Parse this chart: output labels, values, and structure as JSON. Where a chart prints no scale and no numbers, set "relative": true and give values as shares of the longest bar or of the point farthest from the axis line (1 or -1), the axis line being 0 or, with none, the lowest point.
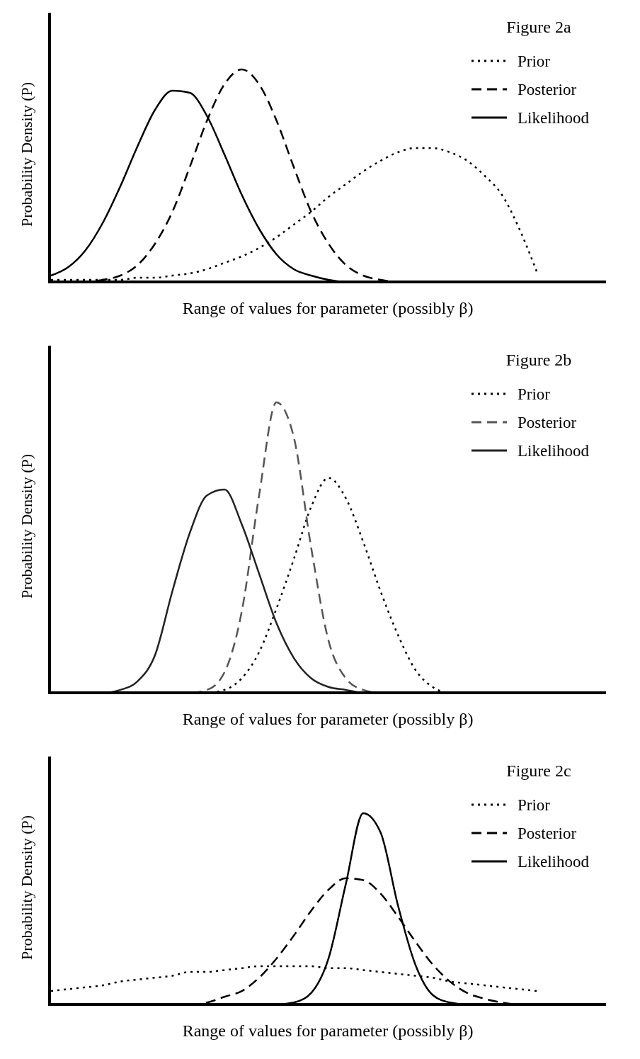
{
  "chart_data": [
    {
      "type": "line",
      "title": "Figure 2a",
      "xlabel": "Range of values for parameter (possibly β)",
      "ylabel": "Probability Density (P)",
      "relative": true,
      "legend": "top right",
      "categories": [
        null,
        null,
        null,
        null,
        null,
        null,
        null,
        null,
        null,
        null,
        null,
        null,
        null,
        null,
        null,
        null,
        null,
        null,
        null,
        null,
        null,
        null,
        null,
        null,
        null,
        null,
        null,
        null,
        null,
        null,
        null,
        null,
        null
      ],
      "series": [
        {
          "name": "Prior",
          "color": "#000000",
          "line_style": "dotted",
          "values": [
            0.01,
            0.01,
            0.01,
            0.01,
            0.01,
            0.02,
            0.02,
            0.03,
            0.04,
            0.06,
            0.09,
            0.12,
            0.16,
            0.21,
            0.27,
            0.33,
            0.4,
            0.46,
            0.52,
            0.57,
            0.61,
            0.63,
            0.63,
            0.61,
            0.57,
            0.5,
            0.41,
            0.25,
            0.05,
            null,
            null,
            null,
            null
          ]
        },
        {
          "name": "Posterior",
          "color": "#000000",
          "line_style": "dashed",
          "values": [
            0,
            0,
            0,
            0.01,
            0.03,
            0.08,
            0.18,
            0.33,
            0.54,
            0.76,
            0.93,
            1,
            0.93,
            0.76,
            0.54,
            0.33,
            0.18,
            0.08,
            0.03,
            0.01,
            0,
            0,
            0,
            0,
            0,
            0,
            0,
            0,
            0,
            0,
            0,
            0,
            0
          ]
        },
        {
          "name": "Likelihood",
          "color": "#000000",
          "line_style": "solid",
          "values": [
            0.03,
            0.07,
            0.15,
            0.28,
            0.45,
            0.64,
            0.81,
            0.9,
            0.89,
            0.78,
            0.6,
            0.41,
            0.25,
            0.13,
            0.06,
            0.03,
            0.01,
            0,
            0,
            0,
            0,
            0,
            0,
            0,
            0,
            0,
            0,
            0,
            0,
            0,
            0,
            0,
            0
          ]
        }
      ]
    },
    {
      "type": "line",
      "title": "Figure 2b",
      "xlabel": "Range of values for parameter (possibly β)",
      "ylabel": "Probability Density (P)",
      "relative": true,
      "legend": "top right",
      "categories": [
        null,
        null,
        null,
        null,
        null,
        null,
        null,
        null,
        null,
        null,
        null,
        null,
        null,
        null,
        null,
        null,
        null,
        null,
        null,
        null,
        null,
        null,
        null,
        null,
        null,
        null,
        null,
        null,
        null,
        null,
        null,
        null,
        null
      ],
      "series": [
        {
          "name": "Prior",
          "color": "#000000",
          "line_style": "dotted",
          "values": [
            0,
            0,
            0,
            0,
            0,
            0,
            0,
            0,
            0,
            0,
            0.01,
            0.05,
            0.14,
            0.29,
            0.46,
            0.64,
            0.74,
            0.67,
            0.52,
            0.35,
            0.2,
            0.08,
            0.02,
            0,
            0,
            0,
            0,
            0,
            0,
            0,
            0,
            0,
            0
          ]
        },
        {
          "name": "Posterior",
          "color": "#555555",
          "line_style": "dashed",
          "values": [
            0,
            0,
            0,
            0,
            0,
            0,
            0,
            0,
            0,
            0.01,
            0.07,
            0.28,
            0.68,
            1,
            0.88,
            0.5,
            0.18,
            0.05,
            0.01,
            0,
            0,
            0,
            0,
            0,
            0,
            0,
            0,
            0,
            0,
            0,
            0,
            0,
            0
          ]
        },
        {
          "name": "Likelihood",
          "color": "#222222",
          "line_style": "solid",
          "values": [
            0,
            0,
            0,
            0,
            0.01,
            0.04,
            0.13,
            0.35,
            0.55,
            0.68,
            0.7,
            0.58,
            0.41,
            0.24,
            0.12,
            0.05,
            0.02,
            0.01,
            0,
            0,
            0,
            0,
            0,
            0,
            0,
            0,
            0,
            0,
            0,
            0,
            0,
            0,
            0
          ]
        }
      ]
    },
    {
      "type": "line",
      "title": "Figure 2c",
      "xlabel": "Range of values for parameter (possibly β)",
      "ylabel": "Probability Density (P)",
      "relative": true,
      "legend": "top right",
      "categories": [
        null,
        null,
        null,
        null,
        null,
        null,
        null,
        null,
        null,
        null,
        null,
        null,
        null,
        null,
        null,
        null,
        null,
        null,
        null,
        null,
        null,
        null,
        null,
        null,
        null,
        null,
        null,
        null,
        null,
        null,
        null,
        null,
        null
      ],
      "series": [
        {
          "name": "Prior",
          "color": "#000000",
          "line_style": "dotted",
          "values": [
            0.07,
            0.08,
            0.09,
            0.1,
            0.12,
            0.13,
            0.14,
            0.15,
            0.17,
            0.17,
            0.18,
            0.19,
            0.2,
            0.2,
            0.2,
            0.2,
            0.19,
            0.19,
            0.18,
            0.17,
            0.16,
            0.15,
            0.14,
            0.12,
            0.11,
            0.1,
            0.09,
            0.08,
            0.07,
            null,
            null,
            null,
            null
          ]
        },
        {
          "name": "Posterior",
          "color": "#000000",
          "line_style": "dashed",
          "values": [
            0,
            0,
            0,
            0,
            0,
            0,
            0,
            0,
            0,
            0.01,
            0.04,
            0.07,
            0.14,
            0.24,
            0.36,
            0.49,
            0.6,
            0.66,
            0.65,
            0.58,
            0.46,
            0.33,
            0.21,
            0.12,
            0.06,
            0.03,
            0.01,
            0,
            0,
            0,
            0,
            0,
            0
          ]
        },
        {
          "name": "Likelihood",
          "color": "#000000",
          "line_style": "solid",
          "values": [
            0,
            0,
            0,
            0,
            0,
            0,
            0,
            0,
            0,
            0,
            0,
            0,
            0,
            0,
            0.01,
            0.06,
            0.24,
            0.63,
            1,
            0.9,
            0.52,
            0.21,
            0.05,
            0.01,
            0,
            0,
            0,
            0,
            0,
            0,
            0,
            0,
            0
          ]
        }
      ]
    }
  ]
}
